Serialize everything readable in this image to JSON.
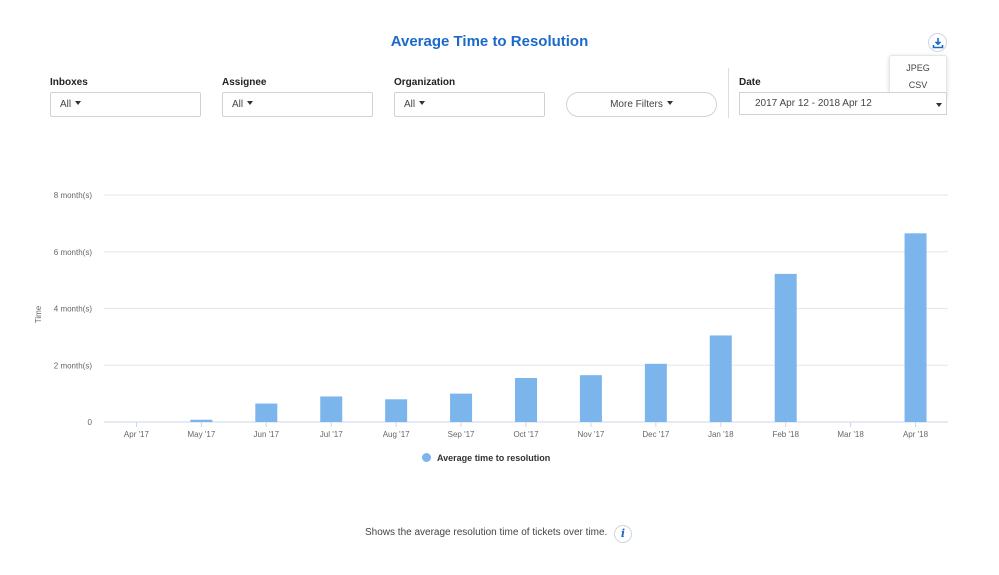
{
  "page": {
    "title": "Average Time to Resolution",
    "footer_text": "Shows the average resolution time of tickets over time.",
    "info_icon": "i"
  },
  "export_menu": {
    "items": [
      "JPEG",
      "CSV"
    ]
  },
  "filters": {
    "inboxes": {
      "label": "Inboxes",
      "value": "All"
    },
    "assignee": {
      "label": "Assignee",
      "value": "All"
    },
    "organization": {
      "label": "Organization",
      "value": "All"
    },
    "more_filters": "More Filters",
    "date": {
      "label": "Date",
      "value": "2017 Apr 12 - 2018 Apr 12"
    }
  },
  "colors": {
    "bar": "#7cb5ec",
    "title": "#1b6ac9",
    "grid": "#e6e6e6"
  },
  "icons": {
    "download": "download-icon",
    "info": "info-icon",
    "dropdown": "caret-down-icon"
  },
  "chart_data": {
    "type": "bar",
    "ylabel": "Time",
    "xlabel": "",
    "y_unit": "month(s)",
    "ylim": [
      0,
      8
    ],
    "yticks": [
      0,
      2,
      4,
      6,
      8
    ],
    "ytick_labels": [
      "0",
      "2 month(s)",
      "4 month(s)",
      "6 month(s)",
      "8 month(s)"
    ],
    "grid": true,
    "legend_position": "bottom-center",
    "categories": [
      "Apr '17",
      "May '17",
      "Jun '17",
      "Jul '17",
      "Aug '17",
      "Sep '17",
      "Oct '17",
      "Nov '17",
      "Dec '17",
      "Jan '18",
      "Feb '18",
      "Mar '18",
      "Apr '18"
    ],
    "series": [
      {
        "name": "Average time to resolution",
        "values": [
          0,
          0.08,
          0.65,
          0.9,
          0.8,
          1.0,
          1.55,
          1.65,
          2.05,
          3.05,
          5.22,
          0,
          6.65
        ]
      }
    ]
  }
}
